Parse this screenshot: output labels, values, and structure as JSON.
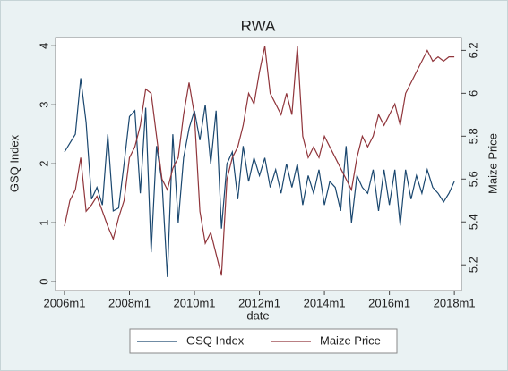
{
  "chart_data": {
    "type": "line",
    "title": "RWA",
    "x_label": "date",
    "y_label": "GSQ Index",
    "y2_label": "Maize Price",
    "x": [
      0,
      2,
      4,
      6,
      8,
      10,
      12,
      14,
      16,
      18,
      20,
      22,
      24,
      26,
      28,
      30,
      32,
      34,
      36,
      38,
      40,
      42,
      44,
      46,
      48,
      50,
      52,
      54,
      56,
      58,
      60,
      62,
      64,
      66,
      68,
      70,
      72,
      74,
      76,
      78,
      80,
      82,
      84,
      86,
      88,
      90,
      92,
      94,
      96,
      98,
      100,
      102,
      104,
      106,
      108,
      110,
      112,
      114,
      116,
      118,
      120,
      122,
      124,
      126,
      128,
      130,
      132,
      134,
      136,
      138,
      140,
      142,
      144
    ],
    "xlim": [
      -3.3,
      146.6
    ],
    "xticks": [
      {
        "value": 0,
        "label": "2006m1"
      },
      {
        "value": 24,
        "label": "2008m1"
      },
      {
        "value": 48,
        "label": "2010m1"
      },
      {
        "value": 72,
        "label": "2012m1"
      },
      {
        "value": 96,
        "label": "2014m1"
      },
      {
        "value": 120,
        "label": "2016m1"
      },
      {
        "value": 144,
        "label": "2018m1"
      }
    ],
    "ylim": [
      -0.15,
      4.14
    ],
    "yticks": [
      0,
      1,
      2,
      3,
      4
    ],
    "y2lim": [
      5.08,
      6.26
    ],
    "y2ticks": [
      5.2,
      5.4,
      5.6,
      5.8,
      {
        "value": 6.0,
        "label": "6"
      },
      6.2
    ],
    "legend": "bottom",
    "series": [
      {
        "name": "GSQ Index",
        "color": "#1a476f",
        "values": [
          2.2,
          2.35,
          2.5,
          3.45,
          2.7,
          1.4,
          1.6,
          1.3,
          2.5,
          1.2,
          1.25,
          2.0,
          2.8,
          2.9,
          1.5,
          2.95,
          0.5,
          2.3,
          1.7,
          0.08,
          2.5,
          1.0,
          2.1,
          2.6,
          2.9,
          2.4,
          3.0,
          2.0,
          2.9,
          0.9,
          2.0,
          2.2,
          1.4,
          2.3,
          1.7,
          2.1,
          1.8,
          2.1,
          1.6,
          1.9,
          1.5,
          2.0,
          1.6,
          2.0,
          1.3,
          1.8,
          1.5,
          1.9,
          1.3,
          1.7,
          1.6,
          1.2,
          2.3,
          1.0,
          1.8,
          1.6,
          1.5,
          1.9,
          1.2,
          1.9,
          1.3,
          1.9,
          0.95,
          1.9,
          1.4,
          1.8,
          1.5,
          1.9,
          1.6,
          1.5,
          1.35,
          1.5,
          1.7
        ]
      },
      {
        "name": "Maize Price",
        "color": "#90353b",
        "axis": "y2",
        "values": [
          5.38,
          5.5,
          5.55,
          5.7,
          5.45,
          5.48,
          5.52,
          5.45,
          5.38,
          5.32,
          5.42,
          5.5,
          5.7,
          5.75,
          5.85,
          6.02,
          6.0,
          5.8,
          5.6,
          5.55,
          5.65,
          5.7,
          5.9,
          6.05,
          5.9,
          5.45,
          5.3,
          5.35,
          5.25,
          5.15,
          5.6,
          5.7,
          5.75,
          5.85,
          6.0,
          5.95,
          6.1,
          6.22,
          6.0,
          5.95,
          5.9,
          6.0,
          5.9,
          6.22,
          5.8,
          5.7,
          5.75,
          5.7,
          5.8,
          5.75,
          5.7,
          5.65,
          5.6,
          5.55,
          5.7,
          5.8,
          5.75,
          5.8,
          5.9,
          5.85,
          5.9,
          5.95,
          5.85,
          6.0,
          6.05,
          6.1,
          6.15,
          6.2,
          6.15,
          6.17,
          6.15,
          6.17,
          6.17
        ]
      }
    ]
  }
}
